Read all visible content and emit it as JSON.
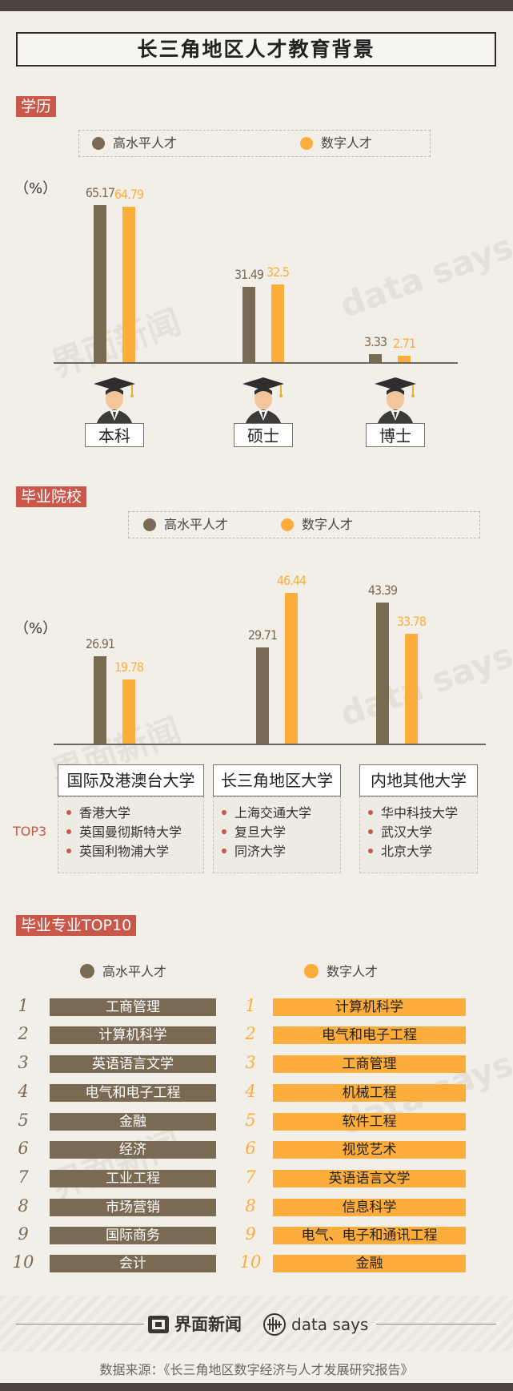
{
  "title": "长三角地区人才教育背景",
  "legend": {
    "high": "高水平人才",
    "digital": "数字人才"
  },
  "colors": {
    "high": "#7a6a54",
    "digital": "#fdad3b",
    "accent": "#c9574a"
  },
  "education": {
    "tag": "学历",
    "unit": "（%）",
    "icon": "graduate-icon"
  },
  "schools": {
    "tag": "毕业院校",
    "unit": "（%）",
    "top3_label": "TOP3",
    "lists": [
      {
        "header": "国际及港澳台大学",
        "items": [
          "香港大学",
          "英国曼彻斯特大学",
          "英国利物浦大学"
        ]
      },
      {
        "header": "长三角地区大学",
        "items": [
          "上海交通大学",
          "复旦大学",
          "同济大学"
        ]
      },
      {
        "header": "内地其他大学",
        "items": [
          "华中科技大学",
          "武汉大学",
          "北京大学"
        ]
      }
    ]
  },
  "majors": {
    "tag": "毕业专业TOP10",
    "ranks": [
      "1",
      "2",
      "3",
      "4",
      "5",
      "6",
      "7",
      "8",
      "9",
      "10"
    ],
    "high": [
      "工商管理",
      "计算机科学",
      "英语语言文学",
      "电气和电子工程",
      "金融",
      "经济",
      "工业工程",
      "市场营销",
      "国际商务",
      "会计"
    ],
    "digital": [
      "计算机科学",
      "电气和电子工程",
      "工商管理",
      "机械工程",
      "软件工程",
      "视觉艺术",
      "英语语言文学",
      "信息科学",
      "电气、电子和通讯工程",
      "金融"
    ]
  },
  "chart_data": [
    {
      "type": "bar",
      "categories": [
        "本科",
        "硕士",
        "博士"
      ],
      "series": [
        {
          "name": "高水平人才",
          "values": [
            65.17,
            31.49,
            3.33
          ]
        },
        {
          "name": "数字人才",
          "values": [
            64.79,
            32.5,
            2.71
          ]
        }
      ],
      "ylabel": "（%）",
      "value_labels": [
        [
          "65.17",
          "31.49",
          "3.33"
        ],
        [
          "64.79",
          "32.5",
          "2.71"
        ]
      ]
    },
    {
      "type": "bar",
      "categories": [
        "国际及港澳台大学",
        "长三角地区大学",
        "内地其他大学"
      ],
      "series": [
        {
          "name": "高水平人才",
          "values": [
            26.91,
            29.71,
            43.39
          ]
        },
        {
          "name": "数字人才",
          "values": [
            19.78,
            46.44,
            33.78
          ]
        }
      ],
      "ylabel": "（%）",
      "value_labels": [
        [
          "26.91",
          "29.71",
          "43.39"
        ],
        [
          "19.78",
          "46.44",
          "33.78"
        ]
      ]
    }
  ],
  "footer": {
    "brand": "界面新闻",
    "brand_icon": "jiemian-logo-icon",
    "datasays": "data says",
    "datasays_icon": "datasays-logo-icon",
    "source": "数据来源：《长三角地区数字经济与人才发展研究报告》"
  },
  "watermarks": [
    "界面新闻",
    "data says"
  ]
}
